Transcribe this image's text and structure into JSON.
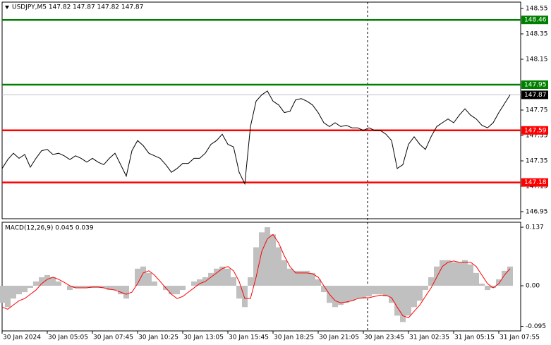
{
  "chart_data": [
    {
      "type": "line",
      "title": "USDJPY,M5  147.82 147.87 147.82 147.87",
      "categories": [
        "30 Jan 2024",
        null,
        null,
        null,
        null,
        null,
        null,
        null,
        "30 Jan 05:05",
        null,
        null,
        null,
        null,
        null,
        null,
        null,
        "30 Jan 07:45",
        null,
        null,
        null,
        null,
        null,
        null,
        null,
        "30 Jan 10:25",
        null,
        null,
        null,
        null,
        null,
        null,
        null,
        "30 Jan 13:05",
        null,
        null,
        null,
        null,
        null,
        null,
        null,
        "30 Jan 15:45",
        null,
        null,
        null,
        null,
        null,
        null,
        null,
        "30 Jan 18:25",
        null,
        null,
        null,
        null,
        null,
        null,
        null,
        "30 Jan 21:05",
        null,
        null,
        null,
        null,
        null,
        null,
        null,
        "30 Jan 23:45",
        null,
        null,
        null,
        null,
        null,
        null,
        null,
        "31 Jan 02:35",
        null,
        null,
        null,
        null,
        null,
        null,
        null,
        "31 Jan 05:15",
        null,
        null,
        null,
        null,
        null,
        null,
        null,
        "31 Jan 07:55",
        null,
        null
      ],
      "values": [
        147.29,
        147.36,
        147.41,
        147.37,
        147.4,
        147.3,
        147.37,
        147.43,
        147.44,
        147.4,
        147.41,
        147.39,
        147.36,
        147.39,
        147.37,
        147.34,
        147.37,
        147.34,
        147.32,
        147.37,
        147.41,
        147.32,
        147.23,
        147.43,
        147.51,
        147.47,
        147.41,
        147.39,
        147.37,
        147.32,
        147.26,
        147.29,
        147.33,
        147.33,
        147.37,
        147.37,
        147.41,
        147.48,
        147.51,
        147.56,
        147.48,
        147.46,
        147.26,
        147.17,
        147.62,
        147.82,
        147.87,
        147.9,
        147.82,
        147.79,
        147.73,
        147.74,
        147.83,
        147.84,
        147.82,
        147.79,
        147.73,
        147.65,
        147.62,
        147.65,
        147.62,
        147.63,
        147.61,
        147.61,
        147.59,
        147.61,
        147.59,
        147.59,
        147.56,
        147.51,
        147.29,
        147.32,
        147.48,
        147.54,
        147.48,
        147.44,
        147.54,
        147.62,
        147.65,
        147.68,
        147.65,
        147.71,
        147.76,
        147.71,
        147.68,
        147.63,
        147.61,
        147.65,
        147.73,
        147.8,
        147.87
      ],
      "color": "#000000",
      "ylim": [
        146.9,
        148.6
      ],
      "yticks": [
        148.55,
        148.35,
        148.15,
        147.75,
        147.55,
        147.35,
        147.15,
        146.95
      ],
      "levels": [
        148.46,
        147.95,
        147.59,
        147.18
      ],
      "level_colors": [
        "#008000",
        "#008000",
        "#ff0000",
        "#ff0000"
      ],
      "last_price": 147.87
    },
    {
      "type": "macd",
      "title": "MACD(12,26,9) 0.045 0.039",
      "histogram": [
        -0.04,
        -0.05,
        -0.03,
        -0.02,
        -0.015,
        -0.005,
        0.01,
        0.02,
        0.025,
        0.02,
        0.01,
        0.0,
        -0.01,
        -0.005,
        -0.005,
        -0.005,
        -0.005,
        -0.005,
        -0.005,
        -0.01,
        -0.01,
        -0.02,
        -0.03,
        0.0,
        0.04,
        0.045,
        0.03,
        0.01,
        0.0,
        -0.01,
        -0.02,
        -0.02,
        -0.01,
        0.0,
        0.01,
        0.015,
        0.02,
        0.03,
        0.04,
        0.045,
        0.04,
        0.02,
        -0.03,
        -0.05,
        0.02,
        0.09,
        0.125,
        0.137,
        0.12,
        0.09,
        0.06,
        0.04,
        0.035,
        0.035,
        0.035,
        0.03,
        0.015,
        -0.015,
        -0.04,
        -0.05,
        -0.045,
        -0.04,
        -0.035,
        -0.03,
        -0.03,
        -0.025,
        -0.02,
        -0.02,
        -0.025,
        -0.04,
        -0.07,
        -0.085,
        -0.07,
        -0.05,
        -0.035,
        -0.01,
        0.02,
        0.045,
        0.06,
        0.06,
        0.055,
        0.055,
        0.06,
        0.05,
        0.03,
        0.005,
        -0.01,
        -0.005,
        0.015,
        0.035,
        0.045
      ],
      "histogram_color": "#c0c0c0",
      "signal": [
        -0.05,
        -0.055,
        -0.045,
        -0.035,
        -0.03,
        -0.02,
        -0.01,
        0.005,
        0.015,
        0.02,
        0.015,
        0.008,
        0.0,
        -0.005,
        -0.005,
        -0.005,
        -0.003,
        -0.003,
        -0.005,
        -0.008,
        -0.01,
        -0.015,
        -0.02,
        -0.015,
        0.005,
        0.03,
        0.035,
        0.025,
        0.01,
        -0.005,
        -0.02,
        -0.03,
        -0.025,
        -0.015,
        -0.005,
        0.005,
        0.01,
        0.02,
        0.03,
        0.04,
        0.045,
        0.035,
        0.01,
        -0.03,
        -0.03,
        0.02,
        0.08,
        0.11,
        0.12,
        0.1,
        0.07,
        0.045,
        0.03,
        0.03,
        0.03,
        0.028,
        0.02,
        0.0,
        -0.02,
        -0.035,
        -0.04,
        -0.038,
        -0.035,
        -0.03,
        -0.028,
        -0.028,
        -0.025,
        -0.022,
        -0.022,
        -0.028,
        -0.05,
        -0.07,
        -0.075,
        -0.06,
        -0.045,
        -0.025,
        -0.005,
        0.02,
        0.045,
        0.055,
        0.058,
        0.055,
        0.055,
        0.055,
        0.045,
        0.025,
        0.005,
        -0.005,
        0.005,
        0.025,
        0.04
      ],
      "signal_color": "#ff0000",
      "ylim": [
        -0.104,
        0.147
      ],
      "yticks": [
        0.137,
        {
          "value": 0,
          "label": "0.00"
        },
        -0.095
      ]
    }
  ]
}
